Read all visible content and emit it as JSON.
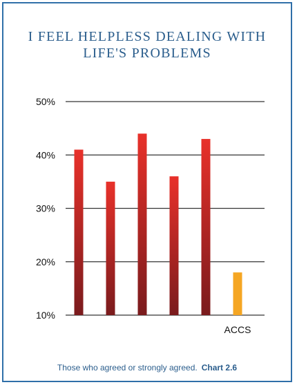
{
  "chart_data": {
    "type": "bar",
    "title_lines": [
      "I FEEL HELPLESS DEALING WITH",
      "LIFE'S PROBLEMS"
    ],
    "categories": [
      "",
      "",
      "",
      "",
      "",
      "ACCS"
    ],
    "values": [
      41,
      35,
      44,
      36,
      43,
      18
    ],
    "yticks": [
      "50%",
      "40%",
      "30%",
      "20%",
      "10%"
    ],
    "ylim": [
      10,
      50
    ],
    "grid": true,
    "colors": {
      "bar_top": "#e8312a",
      "bar_bottom": "#7a1b1d",
      "highlight": "#f5a623",
      "title": "#2a5d8c",
      "border": "#2f6fa8"
    }
  },
  "footnote": {
    "text": "Those who agreed or strongly agreed.",
    "chart_label": "Chart 2.6"
  }
}
